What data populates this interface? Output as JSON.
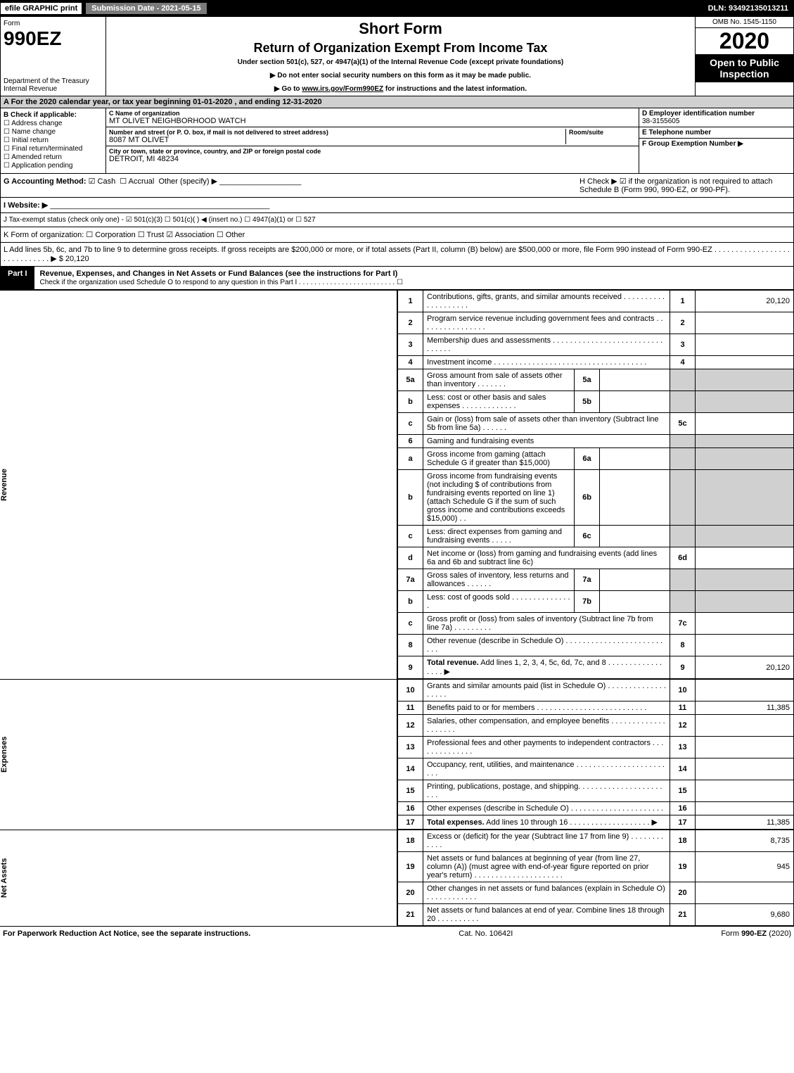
{
  "colors": {
    "black": "#000000",
    "white": "#ffffff",
    "grey_header": "#d0d0d0",
    "midgrey": "#7a7a7a"
  },
  "topbar": {
    "efile": "efile GRAPHIC print",
    "subdate_label": "Submission Date - 2021-05-15",
    "dln": "DLN: 93492135013211"
  },
  "header": {
    "form_label": "Form",
    "form_num": "990EZ",
    "dept": "Department of the Treasury\nInternal Revenue Service",
    "dept1": "Department of the Treasury",
    "dept2": "Internal Revenue",
    "title1": "Short Form",
    "title2": "Return of Organization Exempt From Income Tax",
    "undersec": "Under section 501(c), 527, or 4947(a)(1) of the Internal Revenue Code (except private foundations)",
    "note1": "▶ Do not enter social security numbers on this form as it may be made public.",
    "note2_pre": "▶ Go to ",
    "note2_link": "www.irs.gov/Form990EZ",
    "note2_post": " for instructions and the latest information.",
    "omb": "OMB No. 1545-1150",
    "year": "2020",
    "open_to": "Open to Public Inspection"
  },
  "sectionA": "A For the 2020 calendar year, or tax year beginning 01-01-2020 , and ending 12-31-2020",
  "boxB": {
    "hdr": "B  Check if applicable:",
    "opts": [
      "Address change",
      "Name change",
      "Initial return",
      "Final return/terminated",
      "Amended return",
      "Application pending"
    ]
  },
  "boxC": {
    "name_lbl": "C Name of organization",
    "name": "MT OLIVET NEIGHBORHOOD WATCH",
    "addr_lbl": "Number and street (or P. O. box, if mail is not delivered to street address)",
    "room_lbl": "Room/suite",
    "addr": "8087 MT OLIVET",
    "city_lbl": "City or town, state or province, country, and ZIP or foreign postal code",
    "city": "DETROIT, MI  48234"
  },
  "boxD": {
    "hdr": "D Employer identification number",
    "val": "38-3155605"
  },
  "boxE": {
    "hdr": "E Telephone number",
    "val": ""
  },
  "boxF": {
    "hdr": "F Group Exemption Number  ▶",
    "val": ""
  },
  "lineG": {
    "label": "G Accounting Method:",
    "cash": "Cash",
    "accrual": "Accrual",
    "other": "Other (specify) ▶"
  },
  "lineH": {
    "label": "H  Check ▶ ☑ if the organization is not required to attach Schedule B (Form 990, 990-EZ, or 990-PF)."
  },
  "lineI": {
    "label": "I Website: ▶",
    "val": ""
  },
  "lineJ": {
    "label": "J Tax-exempt status (check only one) - ☑ 501(c)(3)  ☐ 501(c)(  ) ◀ (insert no.)  ☐ 4947(a)(1) or  ☐ 527"
  },
  "lineK": {
    "label": "K Form of organization:   ☐ Corporation   ☐ Trust  ☑ Association   ☐ Other"
  },
  "lineL": {
    "label": "L Add lines 5b, 6c, and 7b to line 9 to determine gross receipts. If gross receipts are $200,000 or more, or if total assets (Part II, column (B) below) are $500,000 or more, file Form 990 instead of Form 990-EZ . . . . . . . . . . . . . . . . . . . . . . . . . . . . . ▶ $ 20,120"
  },
  "partI": {
    "tab": "Part I",
    "title": "Revenue, Expenses, and Changes in Net Assets or Fund Balances (see the instructions for Part I)",
    "sub": "Check if the organization used Schedule O to respond to any question in this Part I . . . . . . . . . . . . . . . . . . . . . . . . . ☐"
  },
  "sidelabels": {
    "revenue": "Revenue",
    "expenses": "Expenses",
    "netassets": "Net Assets"
  },
  "rows_revenue": [
    {
      "n": "1",
      "desc": "Contributions, gifts, grants, and similar amounts received . . . . . . . . . . . . . . . . . . . .",
      "ln": "1",
      "amt": "20,120"
    },
    {
      "n": "2",
      "desc": "Program service revenue including government fees and contracts . . . . . . . . . . . . . . . .",
      "ln": "2",
      "amt": ""
    },
    {
      "n": "3",
      "desc": "Membership dues and assessments . . . . . . . . . . . . . . . . . . . . . . . . . . . . . . . .",
      "ln": "3",
      "amt": ""
    },
    {
      "n": "4",
      "desc": "Investment income . . . . . . . . . . . . . . . . . . . . . . . . . . . . . . . . . . . .",
      "ln": "4",
      "amt": ""
    },
    {
      "n": "5a",
      "desc": "Gross amount from sale of assets other than inventory . . . . . . .",
      "sub": "5a",
      "subval": "",
      "grey": true
    },
    {
      "n": "b",
      "desc": "Less: cost or other basis and sales expenses . . . . . . . . . . . . .",
      "sub": "5b",
      "subval": "",
      "grey": true
    },
    {
      "n": "c",
      "desc": "Gain or (loss) from sale of assets other than inventory (Subtract line 5b from line 5a) . . . . . .",
      "ln": "5c",
      "amt": ""
    },
    {
      "n": "6",
      "desc": "Gaming and fundraising events",
      "grey": true,
      "noamt": true
    },
    {
      "n": "a",
      "desc": "Gross income from gaming (attach Schedule G if greater than $15,000)",
      "sub": "6a",
      "subval": "",
      "grey": true
    },
    {
      "n": "b",
      "desc": "Gross income from fundraising events (not including $                  of contributions from fundraising events reported on line 1) (attach Schedule G if the sum of such gross income and contributions exceeds $15,000)   . .",
      "sub": "6b",
      "subval": "",
      "grey": true
    },
    {
      "n": "c",
      "desc": "Less: direct expenses from gaming and fundraising events    . . . . .",
      "sub": "6c",
      "subval": "",
      "grey": true
    },
    {
      "n": "d",
      "desc": "Net income or (loss) from gaming and fundraising events (add lines 6a and 6b and subtract line 6c)",
      "ln": "6d",
      "amt": ""
    },
    {
      "n": "7a",
      "desc": "Gross sales of inventory, less returns and allowances . . . . . .",
      "sub": "7a",
      "subval": "",
      "grey": true
    },
    {
      "n": "b",
      "desc": "Less: cost of goods sold      . . . . . . . . . . . . . . .",
      "sub": "7b",
      "subval": "",
      "grey": true
    },
    {
      "n": "c",
      "desc": "Gross profit or (loss) from sales of inventory (Subtract line 7b from line 7a) . . . . . . . . .",
      "ln": "7c",
      "amt": ""
    },
    {
      "n": "8",
      "desc": "Other revenue (describe in Schedule O) . . . . . . . . . . . . . . . . . . . . . . . . . .",
      "ln": "8",
      "amt": ""
    },
    {
      "n": "9",
      "desc": "Total revenue. Add lines 1, 2, 3, 4, 5c, 6d, 7c, and 8  . . . . . . . . . . . . . . . . .  ▶",
      "ln": "9",
      "amt": "20,120",
      "bold": true
    }
  ],
  "rows_expenses": [
    {
      "n": "10",
      "desc": "Grants and similar amounts paid (list in Schedule O) . . . . . . . . . . . . . . . . . . .",
      "ln": "10",
      "amt": ""
    },
    {
      "n": "11",
      "desc": "Benefits paid to or for members     . . . . . . . . . . . . . . . . . . . . . . . . . .",
      "ln": "11",
      "amt": "11,385"
    },
    {
      "n": "12",
      "desc": "Salaries, other compensation, and employee benefits . . . . . . . . . . . . . . . . . . . .",
      "ln": "12",
      "amt": ""
    },
    {
      "n": "13",
      "desc": "Professional fees and other payments to independent contractors . . . . . . . . . . . . . .",
      "ln": "13",
      "amt": ""
    },
    {
      "n": "14",
      "desc": "Occupancy, rent, utilities, and maintenance . . . . . . . . . . . . . . . . . . . . . . . .",
      "ln": "14",
      "amt": ""
    },
    {
      "n": "15",
      "desc": "Printing, publications, postage, and shipping. . . . . . . . . . . . . . . . . . . . . . .",
      "ln": "15",
      "amt": ""
    },
    {
      "n": "16",
      "desc": "Other expenses (describe in Schedule O)     . . . . . . . . . . . . . . . . . . . . . .",
      "ln": "16",
      "amt": ""
    },
    {
      "n": "17",
      "desc": "Total expenses. Add lines 10 through 16      . . . . . . . . . . . . . . . . . . .  ▶",
      "ln": "17",
      "amt": "11,385",
      "bold": true
    }
  ],
  "rows_net": [
    {
      "n": "18",
      "desc": "Excess or (deficit) for the year (Subtract line 17 from line 9)        . . . . . . . . . . . .",
      "ln": "18",
      "amt": "8,735"
    },
    {
      "n": "19",
      "desc": "Net assets or fund balances at beginning of year (from line 27, column (A)) (must agree with end-of-year figure reported on prior year's return) . . . . . . . . . . . . . . . . . . . . .",
      "ln": "19",
      "amt": "945"
    },
    {
      "n": "20",
      "desc": "Other changes in net assets or fund balances (explain in Schedule O) . . . . . . . . . . . .",
      "ln": "20",
      "amt": ""
    },
    {
      "n": "21",
      "desc": "Net assets or fund balances at end of year. Combine lines 18 through 20 . . . . . . . . . .",
      "ln": "21",
      "amt": "9,680"
    }
  ],
  "footer": {
    "left": "For Paperwork Reduction Act Notice, see the separate instructions.",
    "mid": "Cat. No. 10642I",
    "right": "Form 990-EZ (2020)"
  }
}
